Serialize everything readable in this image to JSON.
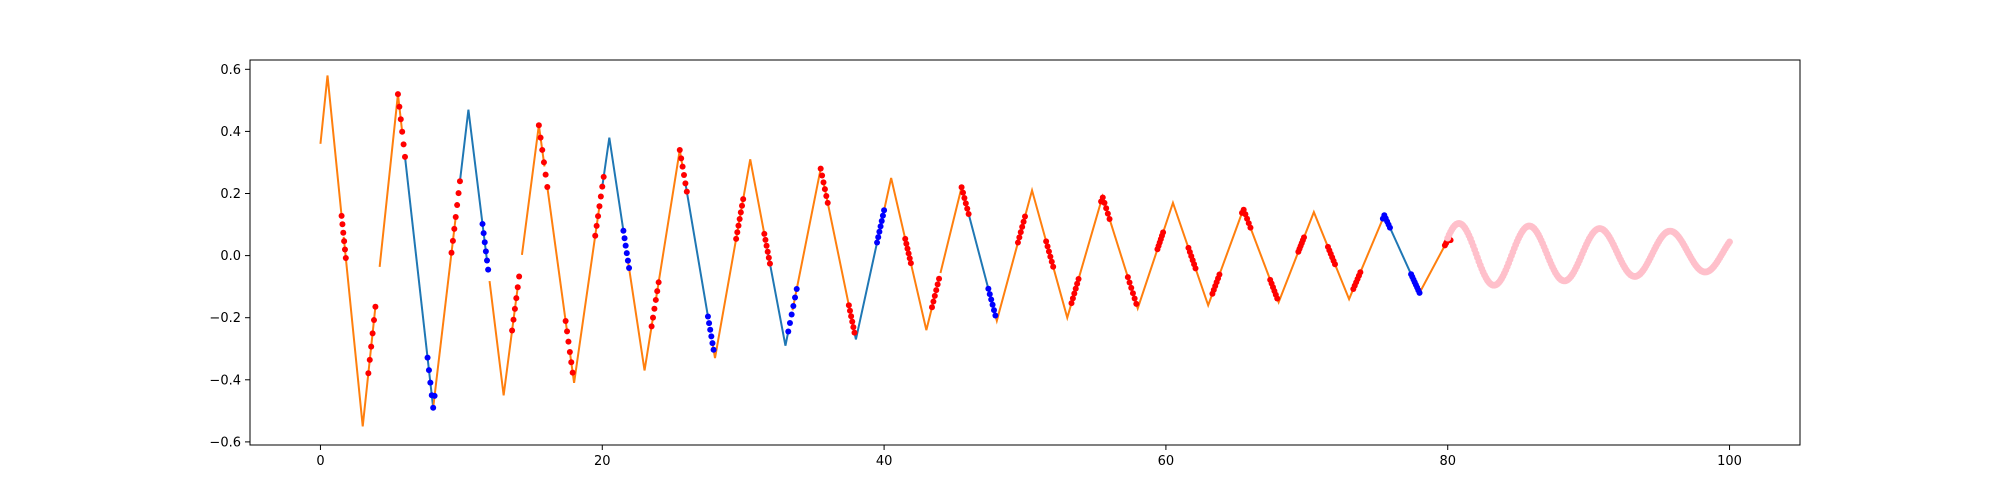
{
  "chart_data": {
    "type": "line",
    "title": "",
    "xlabel": "",
    "ylabel": "",
    "xlim": [
      -5,
      105
    ],
    "ylim": [
      -0.61,
      0.63
    ],
    "xticks": [
      0,
      20,
      40,
      60,
      80,
      100
    ],
    "yticks": [
      -0.6,
      -0.4,
      -0.2,
      0.0,
      0.2,
      0.4,
      0.6
    ],
    "xtick_labels": [
      "0",
      "20",
      "40",
      "60",
      "80",
      "100"
    ],
    "ytick_labels": [
      "−0.6",
      "−0.4",
      "−0.2",
      "0.0",
      "0.2",
      "0.4",
      "0.6"
    ],
    "grid": false,
    "legend": "none",
    "colors": {
      "segment_a": "#1f77b4",
      "segment_b": "#ff7f0e",
      "markers_a": "#0000ff",
      "markers_b": "#ff0000",
      "forecast": "#ffc0cb"
    },
    "series": [
      {
        "role": "zigzag-line",
        "style": "line",
        "vertices": [
          [
            0,
            0.36
          ],
          [
            0.5,
            0.58
          ],
          [
            3,
            -0.55
          ],
          [
            5.5,
            0.52
          ],
          [
            8,
            -0.49
          ],
          [
            10.5,
            0.47
          ],
          [
            13,
            -0.45
          ],
          [
            15.5,
            0.42
          ],
          [
            18,
            -0.41
          ],
          [
            20.5,
            0.38
          ],
          [
            23,
            -0.37
          ],
          [
            25.5,
            0.34
          ],
          [
            28,
            -0.33
          ],
          [
            30.5,
            0.31
          ],
          [
            33,
            -0.29
          ],
          [
            35.5,
            0.28
          ],
          [
            38,
            -0.27
          ],
          [
            40.5,
            0.25
          ],
          [
            43,
            -0.24
          ],
          [
            45.5,
            0.22
          ],
          [
            48,
            -0.21
          ],
          [
            50.5,
            0.21
          ],
          [
            53,
            -0.2
          ],
          [
            55.5,
            0.19
          ],
          [
            58,
            -0.17
          ],
          [
            60.5,
            0.17
          ],
          [
            63,
            -0.16
          ],
          [
            65.5,
            0.15
          ],
          [
            68,
            -0.15
          ],
          [
            70.5,
            0.14
          ],
          [
            73,
            -0.14
          ],
          [
            75.5,
            0.13
          ],
          [
            78,
            -0.12
          ],
          [
            80,
            0.05
          ]
        ],
        "segments": [
          {
            "x0": 0,
            "x1": 1.5,
            "color": "segment_b"
          },
          {
            "x0": 1.65,
            "x1": 3.9,
            "color": "segment_b"
          },
          {
            "x0": 4.2,
            "x1": 5.8,
            "color": "segment_b"
          },
          {
            "x0": 6.0,
            "x1": 8.0,
            "color": "segment_a"
          },
          {
            "x0": 8.0,
            "x1": 9.6,
            "color": "segment_b"
          },
          {
            "x0": 9.9,
            "x1": 11.8,
            "color": "segment_a"
          },
          {
            "x0": 12.0,
            "x1": 14.0,
            "color": "segment_b"
          },
          {
            "x0": 14.3,
            "x1": 15.9,
            "color": "segment_b"
          },
          {
            "x0": 16.1,
            "x1": 17.5,
            "color": "segment_b"
          },
          {
            "x0": 17.7,
            "x1": 19.8,
            "color": "segment_b"
          },
          {
            "x0": 20.0,
            "x1": 21.5,
            "color": "segment_a"
          },
          {
            "x0": 21.8,
            "x1": 23.6,
            "color": "segment_b"
          },
          {
            "x0": 23.8,
            "x1": 25.7,
            "color": "segment_b"
          },
          {
            "x0": 25.9,
            "x1": 27.5,
            "color": "segment_a"
          },
          {
            "x0": 27.8,
            "x1": 29.5,
            "color": "segment_b"
          },
          {
            "x0": 29.5,
            "x1": 31.5,
            "color": "segment_b"
          },
          {
            "x0": 31.7,
            "x1": 33.2,
            "color": "segment_a"
          },
          {
            "x0": 33.5,
            "x1": 35.5,
            "color": "segment_b"
          },
          {
            "x0": 35.7,
            "x1": 37.7,
            "color": "segment_b"
          },
          {
            "x0": 37.9,
            "x1": 39.5,
            "color": "segment_a"
          },
          {
            "x0": 39.8,
            "x1": 41.6,
            "color": "segment_b"
          },
          {
            "x0": 41.9,
            "x1": 43.6,
            "color": "segment_b"
          },
          {
            "x0": 44.0,
            "x1": 45.6,
            "color": "segment_b"
          },
          {
            "x0": 45.9,
            "x1": 47.5,
            "color": "segment_a"
          },
          {
            "x0": 47.8,
            "x1": 49.5,
            "color": "segment_b"
          },
          {
            "x0": 49.5,
            "x1": 51.6,
            "color": "segment_b"
          },
          {
            "x0": 51.9,
            "x1": 53.6,
            "color": "segment_b"
          },
          {
            "x0": 53.8,
            "x1": 55.6,
            "color": "segment_b"
          },
          {
            "x0": 55.8,
            "x1": 57.3,
            "color": "segment_b"
          },
          {
            "x0": 57.6,
            "x1": 59.6,
            "color": "segment_b"
          },
          {
            "x0": 59.8,
            "x1": 61.6,
            "color": "segment_b"
          },
          {
            "x0": 61.8,
            "x1": 63.4,
            "color": "segment_b"
          },
          {
            "x0": 63.7,
            "x1": 65.5,
            "color": "segment_b"
          },
          {
            "x0": 65.8,
            "x1": 67.4,
            "color": "segment_b"
          },
          {
            "x0": 67.7,
            "x1": 69.5,
            "color": "segment_b"
          },
          {
            "x0": 69.7,
            "x1": 71.5,
            "color": "segment_b"
          },
          {
            "x0": 71.8,
            "x1": 73.4,
            "color": "segment_b"
          },
          {
            "x0": 73.7,
            "x1": 75.5,
            "color": "segment_b"
          },
          {
            "x0": 75.8,
            "x1": 77.5,
            "color": "segment_a"
          },
          {
            "x0": 77.8,
            "x1": 80.0,
            "color": "segment_b"
          }
        ]
      },
      {
        "role": "marker-clusters",
        "style": "markers",
        "clusters": [
          {
            "x0": 1.5,
            "x1": 1.8,
            "n": 6,
            "color": "markers_b"
          },
          {
            "x0": 3.4,
            "x1": 3.9,
            "n": 6,
            "color": "markers_b"
          },
          {
            "x0": 5.5,
            "x1": 6.0,
            "n": 6,
            "color": "markers_b"
          },
          {
            "x0": 7.6,
            "x1": 8.1,
            "n": 6,
            "color": "markers_a"
          },
          {
            "x0": 9.3,
            "x1": 9.9,
            "n": 7,
            "color": "markers_b"
          },
          {
            "x0": 11.5,
            "x1": 11.9,
            "n": 6,
            "color": "markers_a"
          },
          {
            "x0": 13.6,
            "x1": 14.1,
            "n": 6,
            "color": "markers_b"
          },
          {
            "x0": 15.5,
            "x1": 16.1,
            "n": 6,
            "color": "markers_b"
          },
          {
            "x0": 17.4,
            "x1": 17.9,
            "n": 6,
            "color": "markers_b"
          },
          {
            "x0": 19.5,
            "x1": 20.1,
            "n": 7,
            "color": "markers_b"
          },
          {
            "x0": 21.5,
            "x1": 21.9,
            "n": 6,
            "color": "markers_a"
          },
          {
            "x0": 23.5,
            "x1": 24.0,
            "n": 6,
            "color": "markers_b"
          },
          {
            "x0": 25.5,
            "x1": 26.0,
            "n": 6,
            "color": "markers_b"
          },
          {
            "x0": 27.5,
            "x1": 27.9,
            "n": 6,
            "color": "markers_a"
          },
          {
            "x0": 29.5,
            "x1": 30.0,
            "n": 7,
            "color": "markers_b"
          },
          {
            "x0": 31.5,
            "x1": 31.9,
            "n": 6,
            "color": "markers_b"
          },
          {
            "x0": 33.2,
            "x1": 33.8,
            "n": 6,
            "color": "markers_a"
          },
          {
            "x0": 35.5,
            "x1": 36.0,
            "n": 6,
            "color": "markers_b"
          },
          {
            "x0": 37.5,
            "x1": 37.9,
            "n": 6,
            "color": "markers_b"
          },
          {
            "x0": 39.5,
            "x1": 40.0,
            "n": 7,
            "color": "markers_a"
          },
          {
            "x0": 41.5,
            "x1": 41.9,
            "n": 6,
            "color": "markers_b"
          },
          {
            "x0": 43.4,
            "x1": 43.9,
            "n": 6,
            "color": "markers_b"
          },
          {
            "x0": 45.5,
            "x1": 46.0,
            "n": 6,
            "color": "markers_b"
          },
          {
            "x0": 47.4,
            "x1": 47.9,
            "n": 6,
            "color": "markers_a"
          },
          {
            "x0": 49.5,
            "x1": 50.0,
            "n": 6,
            "color": "markers_b"
          },
          {
            "x0": 51.5,
            "x1": 52.0,
            "n": 6,
            "color": "markers_b"
          },
          {
            "x0": 53.3,
            "x1": 53.8,
            "n": 6,
            "color": "markers_b"
          },
          {
            "x0": 55.4,
            "x1": 56.0,
            "n": 6,
            "color": "markers_b"
          },
          {
            "x0": 57.3,
            "x1": 57.9,
            "n": 6,
            "color": "markers_b"
          },
          {
            "x0": 59.4,
            "x1": 59.8,
            "n": 6,
            "color": "markers_b"
          },
          {
            "x0": 61.6,
            "x1": 62.1,
            "n": 6,
            "color": "markers_b"
          },
          {
            "x0": 63.3,
            "x1": 63.8,
            "n": 6,
            "color": "markers_b"
          },
          {
            "x0": 65.4,
            "x1": 66.0,
            "n": 6,
            "color": "markers_b"
          },
          {
            "x0": 67.4,
            "x1": 67.9,
            "n": 6,
            "color": "markers_b"
          },
          {
            "x0": 69.4,
            "x1": 69.8,
            "n": 6,
            "color": "markers_b"
          },
          {
            "x0": 71.5,
            "x1": 72.0,
            "n": 6,
            "color": "markers_b"
          },
          {
            "x0": 73.3,
            "x1": 73.8,
            "n": 6,
            "color": "markers_b"
          },
          {
            "x0": 75.4,
            "x1": 75.9,
            "n": 6,
            "color": "markers_a"
          },
          {
            "x0": 77.4,
            "x1": 78.0,
            "n": 8,
            "color": "markers_a"
          },
          {
            "x0": 79.8,
            "x1": 80.2,
            "n": 6,
            "color": "markers_b"
          }
        ]
      },
      {
        "role": "forecast",
        "style": "markers",
        "color": "forecast",
        "x_range": [
          80,
          100
        ],
        "n": 200,
        "amplitude_start": 0.105,
        "amplitude_end": 0.06,
        "offset_start": 0.0,
        "offset_end": 0.012,
        "period": 5,
        "peak_x": 80.8
      }
    ]
  }
}
